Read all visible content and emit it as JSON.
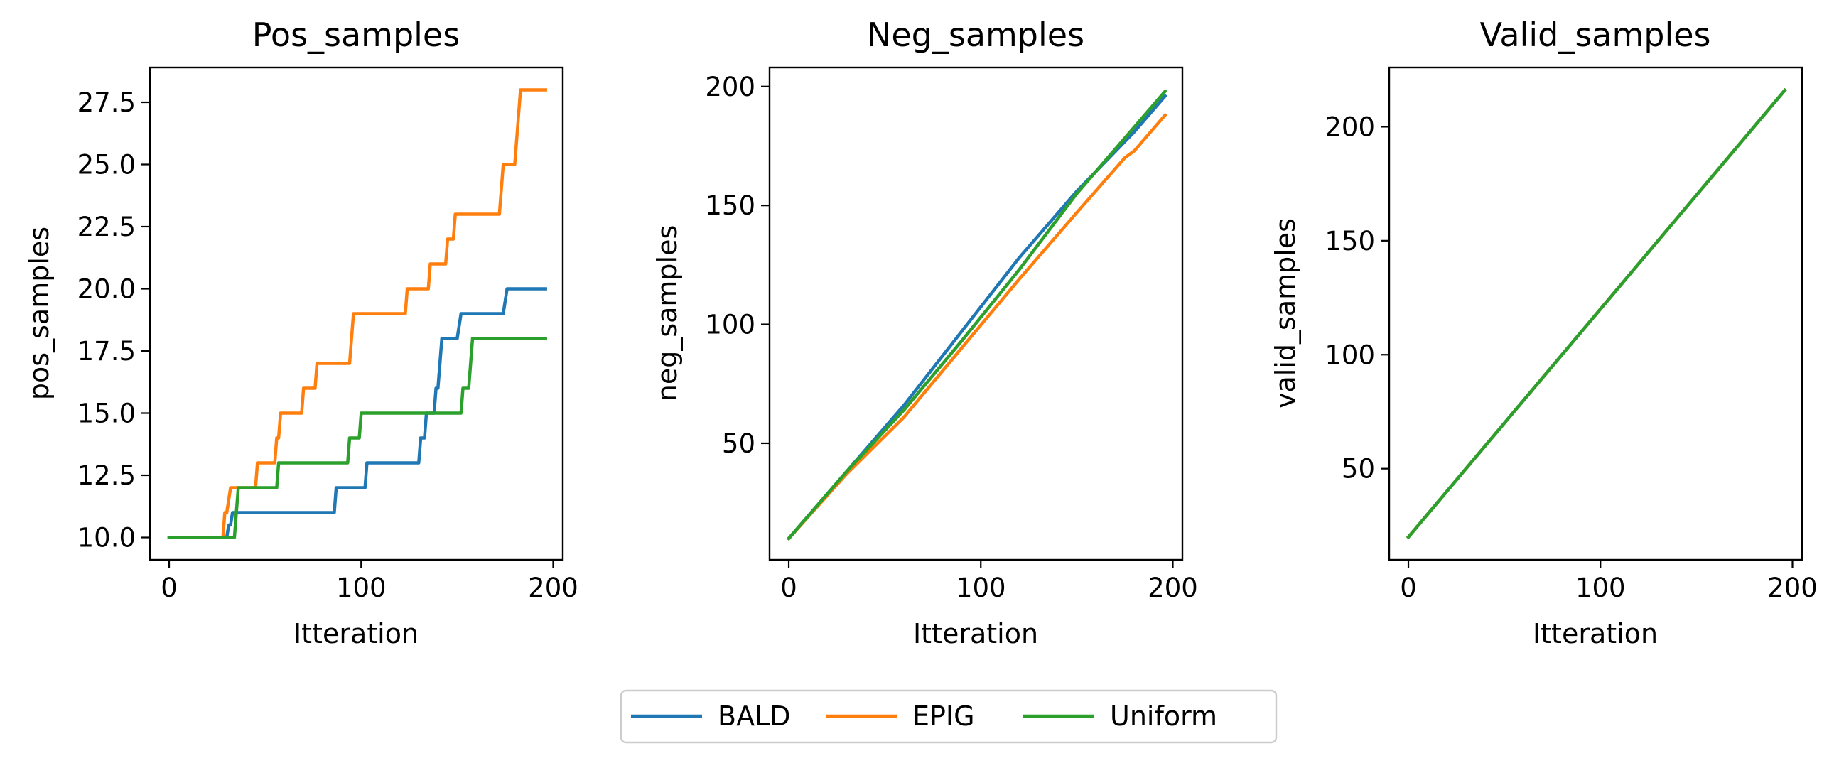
{
  "colors": {
    "BALD": "#1f77b4",
    "EPIG": "#ff7f0e",
    "Uniform": "#2ca02c"
  },
  "legend": {
    "items": [
      "BALD",
      "EPIG",
      "Uniform"
    ],
    "placement": "bottom-center"
  },
  "chart_data": [
    {
      "type": "line",
      "title": "Pos_samples",
      "xlabel": "Itteration",
      "ylabel": "pos_samples",
      "xlim": [
        -10,
        205
      ],
      "ylim": [
        9.1,
        28.9
      ],
      "xticks": [
        0,
        100,
        200
      ],
      "yticks": [
        10.0,
        12.5,
        15.0,
        17.5,
        20.0,
        22.5,
        25.0,
        27.5
      ],
      "ytick_labels": [
        "10.0",
        "12.5",
        "15.0",
        "17.5",
        "20.0",
        "22.5",
        "25.0",
        "27.5"
      ],
      "series": [
        {
          "name": "BALD",
          "x": [
            0,
            30,
            31,
            32,
            33,
            34,
            86,
            87,
            102,
            103,
            123,
            130,
            131,
            133,
            134,
            138,
            139,
            140,
            141,
            142,
            150,
            152,
            174,
            176,
            196
          ],
          "y": [
            10,
            10,
            10.5,
            10.5,
            11,
            11,
            11,
            12,
            12,
            13,
            13,
            13,
            14,
            14,
            15,
            15,
            16,
            16,
            17,
            18,
            18,
            19,
            19,
            20,
            20
          ]
        },
        {
          "name": "EPIG",
          "x": [
            0,
            28,
            29,
            30,
            32,
            33,
            45,
            46,
            55,
            56,
            57,
            58,
            69,
            70,
            76,
            77,
            94,
            95,
            96,
            123,
            124,
            135,
            136,
            144,
            145,
            148,
            149,
            172,
            173,
            174,
            180,
            182,
            183,
            196
          ],
          "y": [
            10,
            10,
            11,
            11,
            12,
            12,
            12,
            13,
            13,
            14,
            14,
            15,
            15,
            16,
            16,
            17,
            17,
            18,
            19,
            19,
            20,
            20,
            21,
            21,
            22,
            22,
            23,
            23,
            24,
            25,
            25,
            27,
            28,
            28
          ]
        },
        {
          "name": "Uniform",
          "x": [
            0,
            34,
            36,
            56,
            57,
            93,
            94,
            99,
            100,
            152,
            153,
            156,
            158,
            196
          ],
          "y": [
            10,
            10,
            12,
            12,
            13,
            13,
            14,
            14,
            15,
            15,
            16,
            16,
            18,
            18
          ]
        }
      ]
    },
    {
      "type": "line",
      "title": "Neg_samples",
      "xlabel": "Itteration",
      "ylabel": "neg_samples",
      "xlim": [
        -10,
        205
      ],
      "ylim": [
        1,
        208
      ],
      "xticks": [
        0,
        100,
        200
      ],
      "yticks": [
        50,
        100,
        150,
        200
      ],
      "ytick_labels": [
        "50",
        "100",
        "150",
        "200"
      ],
      "series": [
        {
          "name": "BALD",
          "x": [
            0,
            30,
            60,
            90,
            120,
            150,
            180,
            196
          ],
          "y": [
            10,
            38,
            66,
            97,
            128,
            156,
            181,
            196
          ]
        },
        {
          "name": "EPIG",
          "x": [
            0,
            30,
            60,
            90,
            120,
            150,
            175,
            180,
            196
          ],
          "y": [
            10,
            37,
            61,
            90,
            119,
            147,
            170,
            173,
            188
          ]
        },
        {
          "name": "Uniform",
          "x": [
            0,
            30,
            60,
            90,
            120,
            150,
            180,
            196
          ],
          "y": [
            10,
            38,
            64,
            93,
            123,
            155,
            183,
            198
          ]
        }
      ]
    },
    {
      "type": "line",
      "title": "Valid_samples",
      "xlabel": "Itteration",
      "ylabel": "valid_samples",
      "xlim": [
        -10,
        205
      ],
      "ylim": [
        10,
        226
      ],
      "xticks": [
        0,
        100,
        200
      ],
      "yticks": [
        50,
        100,
        150,
        200
      ],
      "ytick_labels": [
        "50",
        "100",
        "150",
        "200"
      ],
      "series": [
        {
          "name": "BALD",
          "x": [
            0,
            196
          ],
          "y": [
            20,
            216
          ]
        },
        {
          "name": "EPIG",
          "x": [
            0,
            196
          ],
          "y": [
            20,
            216
          ]
        },
        {
          "name": "Uniform",
          "x": [
            0,
            196
          ],
          "y": [
            20,
            216
          ]
        }
      ]
    }
  ]
}
